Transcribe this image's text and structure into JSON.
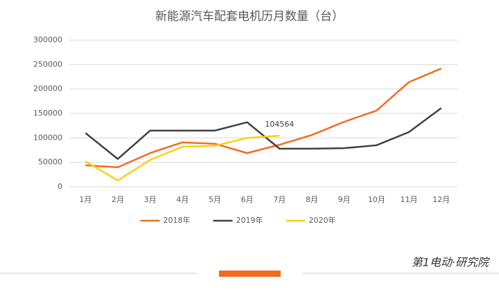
{
  "chart_data": {
    "type": "line",
    "title": "新能源汽车配套电机历月数量（台）",
    "categories": [
      "1月",
      "2月",
      "3月",
      "4月",
      "5月",
      "6月",
      "7月",
      "8月",
      "9月",
      "10月",
      "11月",
      "12月"
    ],
    "series": [
      {
        "name": "2018年",
        "color": "#f26b1d",
        "values": [
          44000,
          40000,
          69000,
          91000,
          88000,
          69000,
          86000,
          106000,
          133000,
          156000,
          214000,
          242000
        ]
      },
      {
        "name": "2019年",
        "color": "#404040",
        "values": [
          110000,
          57000,
          115000,
          115000,
          115000,
          132000,
          78000,
          78000,
          79000,
          85000,
          112000,
          161000
        ]
      },
      {
        "name": "2020年",
        "color": "#f9d00f",
        "values": [
          52000,
          13000,
          55000,
          82000,
          84000,
          100000,
          104564,
          null,
          null,
          null,
          null,
          null
        ]
      }
    ],
    "data_labels": [
      {
        "series": 2,
        "index": 6
      }
    ],
    "ylim": [
      0,
      300000
    ],
    "yticks": [
      0,
      50000,
      100000,
      150000,
      200000,
      250000,
      300000
    ],
    "grid": true,
    "legend": "bottom"
  },
  "footer": {
    "brand": "第1电动·研究院"
  }
}
